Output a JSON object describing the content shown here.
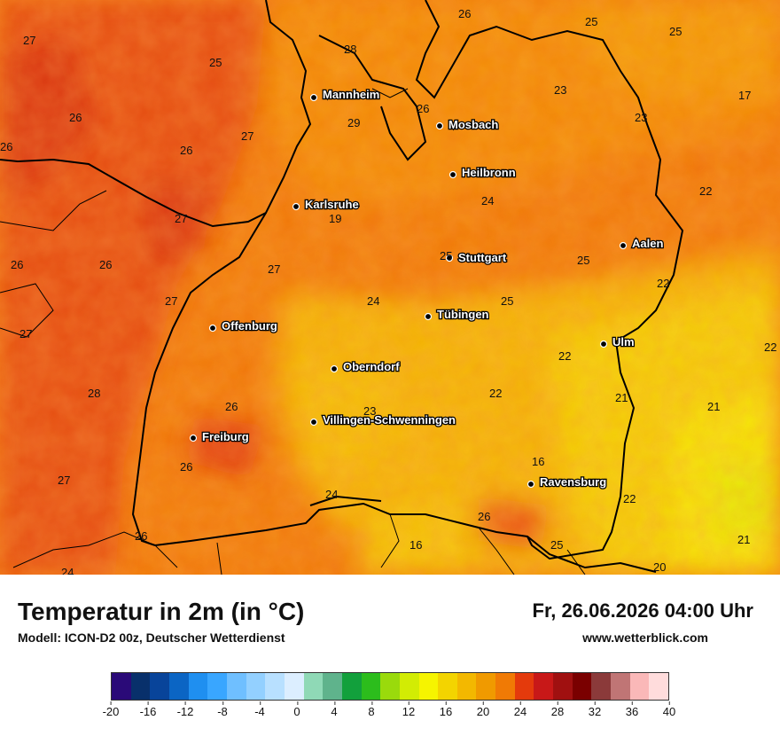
{
  "title": "Temperatur in 2m (in °C)",
  "subtitle": "Modell: ICON-D2 00z, Deutscher Wetterdienst",
  "datetime": "Fr, 26.06.2026 04:00 Uhr",
  "website": "www.wetterblick.com",
  "cities": [
    "Mannheim",
    "Mosbach",
    "Heilbronn",
    "Karlsruhe",
    "Stuttgart",
    "Aalen",
    "Tübingen",
    "Offenburg",
    "Ulm",
    "Oberndorf",
    "Villingen-Schwenningen",
    "Freiburg",
    "Ravensburg"
  ],
  "temperature_labels": [
    "26",
    "25",
    "27",
    "28",
    "29",
    "26",
    "25",
    "23",
    "17",
    "23",
    "26",
    "27",
    "26",
    "22",
    "27",
    "19",
    "24",
    "26",
    "26",
    "25",
    "25",
    "27",
    "27",
    "24",
    "25",
    "22",
    "27",
    "22",
    "22",
    "28",
    "21",
    "21",
    "26",
    "23",
    "22",
    "16",
    "26",
    "22",
    "24",
    "27",
    "26",
    "16",
    "25",
    "21",
    "24",
    "20"
  ],
  "colorscale": {
    "colors": [
      "#2a0a78",
      "#08306b",
      "#08449a",
      "#0b65c4",
      "#1f8ff0",
      "#39a6ff",
      "#6fbfff",
      "#93d0ff",
      "#b8e0ff",
      "#dceeff",
      "#8fd9b6",
      "#5fb38c",
      "#12a03c",
      "#2cbd1c",
      "#9ada0c",
      "#d2ec04",
      "#f6f400",
      "#f3d400",
      "#f3b800",
      "#f09a00",
      "#f07a05",
      "#e43a0c",
      "#c81818",
      "#a01010",
      "#7a0000",
      "#8b3a3a",
      "#c07575",
      "#fab8b8",
      "#ffdcdc"
    ],
    "tick_labels": [
      "-20",
      "-16",
      "-12",
      "-8",
      "-4",
      "0",
      "4",
      "8",
      "12",
      "16",
      "20",
      "24",
      "28",
      "32",
      "36",
      "40"
    ]
  }
}
